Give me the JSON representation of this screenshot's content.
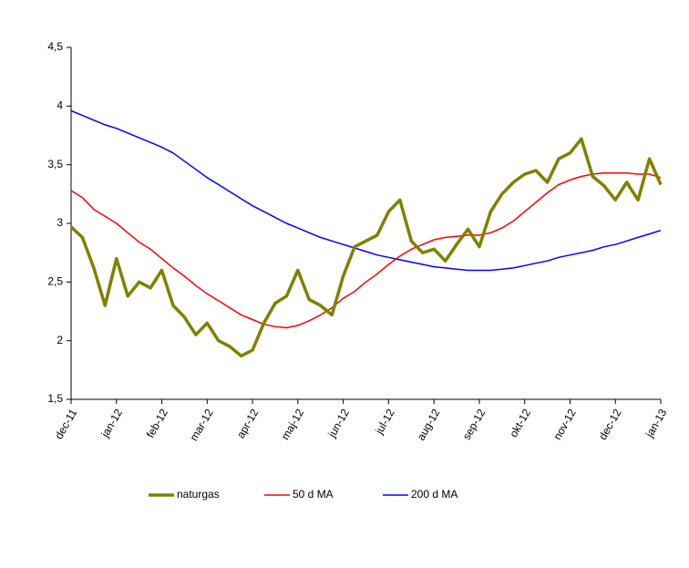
{
  "chart_data": {
    "type": "line",
    "categories": [
      "dec-11",
      null,
      null,
      null,
      "jan-12",
      null,
      null,
      null,
      "feb-12",
      null,
      null,
      null,
      "mar-12",
      null,
      null,
      null,
      "apr-12",
      null,
      null,
      null,
      "maj-12",
      null,
      null,
      null,
      "jun-12",
      null,
      null,
      null,
      "jul-12",
      null,
      null,
      null,
      "aug-12",
      null,
      null,
      null,
      "sep-12",
      null,
      null,
      null,
      "okt-12",
      null,
      null,
      null,
      "nov-12",
      null,
      null,
      null,
      "dec-12",
      null,
      null,
      null,
      "jan-13"
    ],
    "series": [
      {
        "name": "naturgas",
        "color": "#808000",
        "values": [
          2.97,
          2.88,
          2.62,
          2.3,
          2.7,
          2.38,
          2.5,
          2.45,
          2.6,
          2.3,
          2.2,
          2.05,
          2.15,
          2.0,
          1.95,
          1.87,
          1.92,
          2.15,
          2.32,
          2.38,
          2.6,
          2.35,
          2.3,
          2.22,
          2.55,
          2.8,
          2.85,
          2.9,
          3.1,
          3.2,
          2.85,
          2.75,
          2.78,
          2.68,
          2.82,
          2.95,
          2.8,
          3.1,
          3.25,
          3.35,
          3.42,
          3.45,
          3.35,
          3.55,
          3.6,
          3.72,
          3.4,
          3.32,
          3.2,
          3.35,
          3.2,
          3.55,
          3.33
        ]
      },
      {
        "name": "50 d MA",
        "color": "#ff0000",
        "values": [
          3.28,
          3.22,
          3.12,
          3.06,
          3.0,
          2.92,
          2.84,
          2.78,
          2.7,
          2.62,
          2.55,
          2.47,
          2.4,
          2.34,
          2.28,
          2.22,
          2.18,
          2.14,
          2.12,
          2.11,
          2.13,
          2.17,
          2.22,
          2.28,
          2.36,
          2.42,
          2.5,
          2.57,
          2.65,
          2.72,
          2.78,
          2.82,
          2.86,
          2.88,
          2.89,
          2.9,
          2.9,
          2.92,
          2.96,
          3.02,
          3.1,
          3.18,
          3.26,
          3.33,
          3.37,
          3.4,
          3.42,
          3.43,
          3.43,
          3.43,
          3.42,
          3.42,
          3.39
        ]
      },
      {
        "name": "200 d MA",
        "color": "#0000ff",
        "values": [
          3.96,
          3.92,
          3.88,
          3.84,
          3.81,
          3.77,
          3.73,
          3.69,
          3.65,
          3.6,
          3.53,
          3.46,
          3.39,
          3.33,
          3.27,
          3.21,
          3.15,
          3.1,
          3.05,
          3.0,
          2.96,
          2.92,
          2.88,
          2.85,
          2.82,
          2.79,
          2.76,
          2.73,
          2.71,
          2.69,
          2.67,
          2.65,
          2.63,
          2.62,
          2.61,
          2.6,
          2.6,
          2.6,
          2.61,
          2.62,
          2.64,
          2.66,
          2.68,
          2.71,
          2.73,
          2.75,
          2.77,
          2.8,
          2.82,
          2.85,
          2.88,
          2.91,
          2.94
        ]
      }
    ],
    "ylim": [
      1.5,
      4.5
    ],
    "yticks": [
      {
        "value": 1.5,
        "label": "1,5"
      },
      2,
      {
        "value": 2.5,
        "label": "2,5"
      },
      3,
      {
        "value": 3.5,
        "label": "3,5"
      },
      4,
      {
        "value": 4.5,
        "label": "4,5"
      }
    ],
    "grid": false,
    "legend": "bottom"
  }
}
